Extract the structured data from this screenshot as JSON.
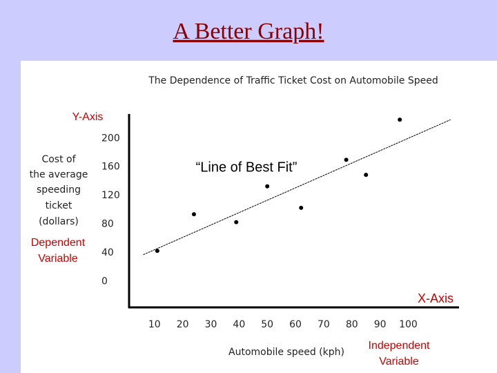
{
  "slide_title": "A Better Graph!",
  "chart_data": {
    "type": "scatter",
    "title": "The Dependence of Traffic Ticket Cost on Automobile Speed",
    "xlabel": "Automobile speed (kph)",
    "ylabel": [
      "Cost of",
      "the average",
      "speeding",
      "ticket",
      "(dollars)"
    ],
    "x": [
      11,
      24,
      39,
      50,
      62,
      78,
      85,
      97
    ],
    "values": [
      43,
      94,
      83,
      133,
      103,
      170,
      149,
      226
    ],
    "color": "#000000",
    "fit_line": {
      "x": [
        6,
        115
      ],
      "y": [
        37.5,
        226
      ]
    },
    "xlim": [
      1,
      118
    ],
    "ylim": [
      -36,
      234
    ],
    "xticks": [
      10,
      20,
      30,
      40,
      50,
      60,
      70,
      80,
      90,
      100
    ],
    "yticks": [
      0,
      40,
      80,
      120,
      160,
      200
    ],
    "grid": false,
    "annotations": {
      "y_axis": "Y-Axis",
      "dependent": [
        "Dependent",
        "Variable"
      ],
      "best_fit": "“Line of Best Fit”",
      "x_axis": "X-Axis",
      "independent": [
        "Independent",
        "Variable"
      ]
    },
    "annotation_color": "#cc0000"
  }
}
